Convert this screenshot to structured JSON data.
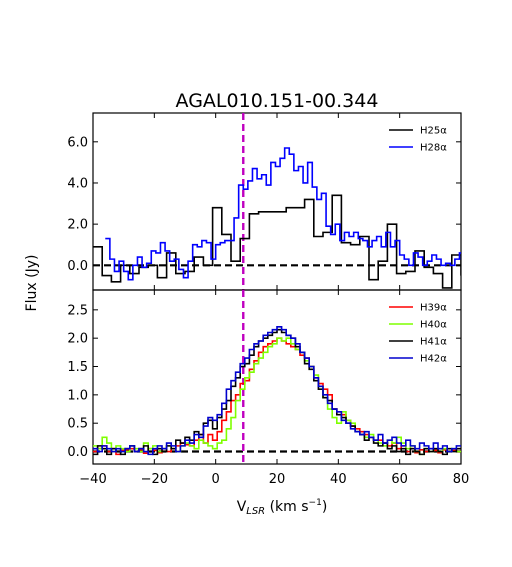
{
  "chart_data": {
    "title": "AGAL010.151-00.344",
    "xlabel": "V_LSR (km s⁻¹)",
    "xlabel_main": "V",
    "xlabel_sub": "LSR",
    "xlabel_unit": " (km s",
    "xlabel_exp": "−1",
    "xlabel_close": ")",
    "ylabel": "Flux (Jy)",
    "x_ticks": [
      "−40",
      "−20",
      "0",
      "20",
      "40",
      "60",
      "80"
    ],
    "xlim": [
      -40,
      80
    ],
    "vline_x": 9,
    "vline_color": "#bf00bf",
    "panels": [
      {
        "id": "top",
        "type": "line",
        "ylim": [
          -1.2,
          7.4
        ],
        "y_ticks": [
          "0.0",
          "2.0",
          "4.0",
          "6.0"
        ],
        "y_tick_values": [
          0,
          2,
          4,
          6
        ],
        "legend": "top-right",
        "series": [
          {
            "name": "H25α",
            "color": "#000000",
            "x": [
              -40,
              -37,
              -34,
              -31,
              -28,
              -25,
              -22,
              -19,
              -16,
              -13,
              -10,
              -7,
              -4,
              -1,
              2,
              5,
              8,
              11,
              14,
              17,
              20,
              23,
              26,
              29,
              32,
              35,
              38,
              41,
              44,
              47,
              50,
              53,
              56,
              59,
              62,
              65,
              68,
              71,
              74,
              77,
              80
            ],
            "y": [
              0.9,
              -0.5,
              -0.8,
              0.0,
              -0.4,
              -0.1,
              0.0,
              -0.6,
              0.6,
              -0.4,
              -0.3,
              0.4,
              0.0,
              2.8,
              1.5,
              0.2,
              1.3,
              2.5,
              2.6,
              2.6,
              2.6,
              2.8,
              2.8,
              3.2,
              1.4,
              1.6,
              3.4,
              1.1,
              1.0,
              1.4,
              -0.7,
              0.2,
              2.0,
              -0.4,
              -0.3,
              0.7,
              -0.1,
              -0.4,
              -1.1,
              0.5,
              -0.5
            ]
          },
          {
            "name": "H28α",
            "color": "#0000ff",
            "x": [
              -36,
              -34.5,
              -33,
              -31.5,
              -30,
              -28.5,
              -27,
              -25.5,
              -24,
              -22.5,
              -21,
              -19.5,
              -18,
              -16.5,
              -15,
              -13.5,
              -12,
              -10.5,
              -9,
              -7.5,
              -6,
              -4.5,
              -3,
              -1.5,
              0,
              1.5,
              3,
              4.5,
              6,
              7.5,
              9,
              10.5,
              12,
              13.5,
              15,
              16.5,
              18,
              19.5,
              21,
              22.5,
              24,
              25.5,
              27,
              28.5,
              30,
              31.5,
              33,
              34.5,
              36,
              37.5,
              39,
              40.5,
              42,
              43.5,
              45,
              46.5,
              48,
              49.5,
              51,
              52.5,
              54,
              55.5,
              57,
              58.5,
              60,
              61.5,
              63,
              64.5,
              66,
              67.5,
              69,
              70.5,
              72,
              73.5,
              75,
              76.5,
              78,
              79.5
            ],
            "y": [
              1.3,
              0.3,
              -0.3,
              0.2,
              -0.3,
              -0.7,
              0.0,
              0.4,
              -0.1,
              0.1,
              0.7,
              0.6,
              1.1,
              0.7,
              0.2,
              0.3,
              -0.2,
              -0.6,
              0.2,
              1.0,
              0.9,
              1.2,
              1.1,
              0.3,
              1.0,
              1.1,
              1.2,
              1.2,
              2.3,
              3.9,
              3.7,
              4.1,
              4.7,
              4.2,
              4.4,
              3.9,
              5.0,
              4.8,
              5.2,
              5.7,
              5.4,
              4.6,
              4.8,
              4.0,
              5.0,
              3.8,
              3.2,
              3.5,
              1.9,
              1.5,
              2.0,
              1.2,
              1.6,
              1.4,
              1.6,
              1.3,
              1.2,
              0.9,
              1.2,
              1.4,
              0.9,
              1.6,
              0.9,
              1.2,
              0.5,
              0.3,
              0.0,
              0.6,
              0.4,
              0.0,
              0.2,
              0.5,
              0.3,
              0.0,
              0.1,
              0.0,
              0.3,
              0.6
            ]
          }
        ]
      },
      {
        "id": "bottom",
        "type": "line",
        "ylim": [
          -0.22,
          2.85
        ],
        "y_ticks": [
          "0.0",
          "0.5",
          "1.0",
          "1.5",
          "2.0",
          "2.5"
        ],
        "y_tick_values": [
          0,
          0.5,
          1.0,
          1.5,
          2.0,
          2.5
        ],
        "legend": "top-right",
        "series": [
          {
            "name": "H39α",
            "color": "#ff0000",
            "x": [
              -40,
              -38.5,
              -37,
              -35.5,
              -34,
              -32.5,
              -31,
              -29.5,
              -28,
              -26.5,
              -25,
              -23.5,
              -22,
              -20.5,
              -19,
              -17.5,
              -16,
              -14.5,
              -13,
              -11.5,
              -10,
              -8.5,
              -7,
              -5.5,
              -4,
              -2.5,
              -1,
              0.5,
              2,
              3.5,
              5,
              6.5,
              8,
              9.5,
              11,
              12.5,
              14,
              15.5,
              17,
              18.5,
              20,
              21.5,
              23,
              24.5,
              26,
              27.5,
              29,
              30.5,
              32,
              33.5,
              35,
              36.5,
              38,
              39.5,
              41,
              42.5,
              44,
              45.5,
              47,
              48.5,
              50,
              51.5,
              53,
              54.5,
              56,
              57.5,
              59,
              60.5,
              62,
              63.5,
              65,
              66.5,
              68,
              69.5,
              71,
              72.5,
              74,
              75.5,
              77,
              78.5
            ],
            "y": [
              0.0,
              0.05,
              0.1,
              0.0,
              0.05,
              -0.05,
              0.02,
              0.03,
              0.05,
              0.0,
              0.03,
              -0.03,
              0.05,
              0.02,
              -0.02,
              0.05,
              0.0,
              0.05,
              0.1,
              0.15,
              0.12,
              0.1,
              0.2,
              0.3,
              0.15,
              0.3,
              0.2,
              0.35,
              0.55,
              0.7,
              0.9,
              1.0,
              1.2,
              1.25,
              1.45,
              1.6,
              1.75,
              1.85,
              1.9,
              1.95,
              2.0,
              1.95,
              1.9,
              1.85,
              1.8,
              1.7,
              1.65,
              1.5,
              1.3,
              1.2,
              1.1,
              1.0,
              0.75,
              0.7,
              0.65,
              0.55,
              0.45,
              0.4,
              0.35,
              0.3,
              0.25,
              0.2,
              0.2,
              0.15,
              0.1,
              0.15,
              0.05,
              0.1,
              0.0,
              0.05,
              -0.02,
              0.03,
              0.0,
              0.05,
              0.02,
              -0.02,
              0.03,
              0.0,
              0.02,
              0.0
            ]
          },
          {
            "name": "H40α",
            "color": "#7fff00",
            "x": [
              -40,
              -38.5,
              -37,
              -35.5,
              -34,
              -32.5,
              -31,
              -29.5,
              -28,
              -26.5,
              -25,
              -23.5,
              -22,
              -20.5,
              -19,
              -17.5,
              -16,
              -14.5,
              -13,
              -11.5,
              -10,
              -8.5,
              -7,
              -5.5,
              -4,
              -2.5,
              -1,
              0.5,
              2,
              3.5,
              5,
              6.5,
              8,
              9.5,
              11,
              12.5,
              14,
              15.5,
              17,
              18.5,
              20,
              21.5,
              23,
              24.5,
              26,
              27.5,
              29,
              30.5,
              32,
              33.5,
              35,
              36.5,
              38,
              39.5,
              41,
              42.5,
              44,
              45.5,
              47,
              48.5,
              50,
              51.5,
              53,
              54.5,
              56,
              57.5,
              59,
              60.5,
              62,
              63.5,
              65,
              66.5,
              68,
              69.5,
              71,
              72.5,
              74,
              75.5,
              77,
              78.5
            ],
            "y": [
              0.1,
              0.05,
              0.25,
              0.15,
              0.0,
              0.1,
              0.05,
              0.0,
              0.1,
              0.05,
              0.0,
              0.15,
              0.05,
              0.1,
              0.0,
              0.05,
              0.1,
              0.05,
              0.0,
              0.1,
              0.15,
              0.1,
              0.05,
              0.2,
              0.15,
              0.1,
              0.05,
              0.15,
              0.2,
              0.4,
              0.6,
              0.9,
              1.1,
              1.3,
              1.4,
              1.55,
              1.65,
              1.75,
              1.85,
              1.9,
              2.0,
              1.95,
              2.0,
              1.9,
              1.8,
              1.75,
              1.6,
              1.5,
              1.35,
              1.15,
              0.95,
              0.75,
              0.6,
              0.5,
              0.7,
              0.55,
              0.5,
              0.35,
              0.3,
              0.25,
              0.3,
              0.2,
              0.15,
              0.1,
              0.2,
              0.15,
              0.25,
              0.15,
              0.05,
              0.1,
              0.0,
              -0.05,
              0.05,
              0.0,
              0.05,
              0.0,
              0.05,
              0.0,
              0.05,
              0.0
            ]
          },
          {
            "name": "H41α",
            "color": "#000000",
            "x": [
              -40,
              -38.5,
              -37,
              -35.5,
              -34,
              -32.5,
              -31,
              -29.5,
              -28,
              -26.5,
              -25,
              -23.5,
              -22,
              -20.5,
              -19,
              -17.5,
              -16,
              -14.5,
              -13,
              -11.5,
              -10,
              -8.5,
              -7,
              -5.5,
              -4,
              -2.5,
              -1,
              0.5,
              2,
              3.5,
              5,
              6.5,
              8,
              9.5,
              11,
              12.5,
              14,
              15.5,
              17,
              18.5,
              20,
              21.5,
              23,
              24.5,
              26,
              27.5,
              29,
              30.5,
              32,
              33.5,
              35,
              36.5,
              38,
              39.5,
              41,
              42.5,
              44,
              45.5,
              47,
              48.5,
              50,
              51.5,
              53,
              54.5,
              56,
              57.5,
              59,
              60.5,
              62,
              63.5,
              65,
              66.5,
              68,
              69.5,
              71,
              72.5,
              74,
              75.5,
              77,
              78.5
            ],
            "y": [
              -0.05,
              0.1,
              0.05,
              -0.05,
              0.05,
              0.0,
              -0.05,
              0.05,
              0.1,
              0.0,
              0.05,
              0.1,
              0.0,
              -0.05,
              0.05,
              0.0,
              0.1,
              0.05,
              0.2,
              0.15,
              0.25,
              0.2,
              0.35,
              0.3,
              0.5,
              0.55,
              0.4,
              0.6,
              0.75,
              0.9,
              1.15,
              1.3,
              1.5,
              1.55,
              1.7,
              1.85,
              1.95,
              2.0,
              2.05,
              2.1,
              2.15,
              2.1,
              2.05,
              2.0,
              1.85,
              1.75,
              1.55,
              1.45,
              1.25,
              1.1,
              0.95,
              0.9,
              0.75,
              0.65,
              0.6,
              0.5,
              0.45,
              0.35,
              0.3,
              0.2,
              0.25,
              0.15,
              0.1,
              0.15,
              0.05,
              0.1,
              0.0,
              0.05,
              -0.05,
              0.05,
              0.0,
              -0.05,
              0.05,
              0.0,
              0.05,
              0.0,
              -0.05,
              0.05,
              0.0,
              0.05
            ]
          },
          {
            "name": "H42α",
            "color": "#0000cd",
            "x": [
              -40,
              -38.5,
              -37,
              -35.5,
              -34,
              -32.5,
              -31,
              -29.5,
              -28,
              -26.5,
              -25,
              -23.5,
              -22,
              -20.5,
              -19,
              -17.5,
              -16,
              -14.5,
              -13,
              -11.5,
              -10,
              -8.5,
              -7,
              -5.5,
              -4,
              -2.5,
              -1,
              0.5,
              2,
              3.5,
              5,
              6.5,
              8,
              9.5,
              11,
              12.5,
              14,
              15.5,
              17,
              18.5,
              20,
              21.5,
              23,
              24.5,
              26,
              27.5,
              29,
              30.5,
              32,
              33.5,
              35,
              36.5,
              38,
              39.5,
              41,
              42.5,
              44,
              45.5,
              47,
              48.5,
              50,
              51.5,
              53,
              54.5,
              56,
              57.5,
              59,
              60.5,
              62,
              63.5,
              65,
              66.5,
              68,
              69.5,
              71,
              72.5,
              74,
              75.5,
              77,
              78.5
            ],
            "y": [
              0.05,
              0.0,
              0.1,
              0.05,
              0.0,
              0.05,
              0.0,
              0.05,
              0.1,
              0.0,
              0.05,
              0.0,
              -0.05,
              0.05,
              0.1,
              0.05,
              0.15,
              0.1,
              0.0,
              0.1,
              0.2,
              0.15,
              0.3,
              0.25,
              0.45,
              0.6,
              0.55,
              0.65,
              0.85,
              1.1,
              1.25,
              1.4,
              1.55,
              1.65,
              1.8,
              1.9,
              1.95,
              2.05,
              2.1,
              2.15,
              2.2,
              2.15,
              2.05,
              2.0,
              1.9,
              1.75,
              1.65,
              1.5,
              1.3,
              1.15,
              1.0,
              0.85,
              0.75,
              0.7,
              0.55,
              0.5,
              0.4,
              0.35,
              0.3,
              0.35,
              0.25,
              0.2,
              0.3,
              0.15,
              0.2,
              0.25,
              0.15,
              0.1,
              0.2,
              0.1,
              0.05,
              0.15,
              0.1,
              0.05,
              0.15,
              0.05,
              0.1,
              0.0,
              0.05,
              0.1
            ]
          }
        ]
      }
    ]
  }
}
